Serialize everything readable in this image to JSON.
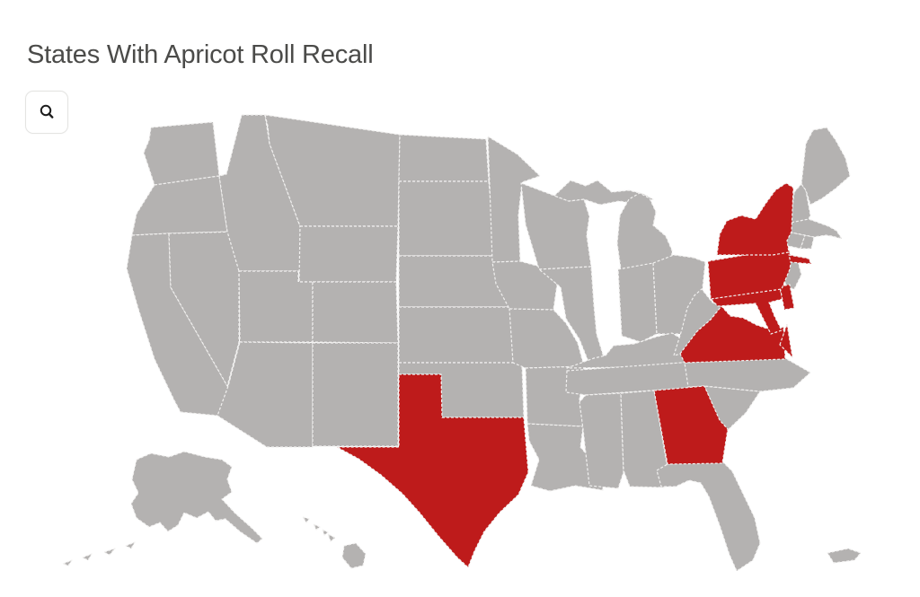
{
  "title": "States With Apricot Roll Recall",
  "toolbar": {
    "zoom_button_icon": "magnifier-icon"
  },
  "map": {
    "type": "us-choropleth",
    "colors": {
      "recalled": "#be1b1b",
      "not_recalled": "#b4b2b1",
      "state_border": "#f1f0ef",
      "background": "#ffffff"
    },
    "legend_note": "",
    "recalled_states": [
      "New York",
      "Pennsylvania",
      "Delaware",
      "Maryland",
      "Virginia",
      "Georgia",
      "Texas"
    ],
    "states": [
      {
        "code": "WA",
        "name": "Washington",
        "recalled": false
      },
      {
        "code": "OR",
        "name": "Oregon",
        "recalled": false
      },
      {
        "code": "CA",
        "name": "California",
        "recalled": false
      },
      {
        "code": "NV",
        "name": "Nevada",
        "recalled": false
      },
      {
        "code": "ID",
        "name": "Idaho",
        "recalled": false
      },
      {
        "code": "MT",
        "name": "Montana",
        "recalled": false
      },
      {
        "code": "WY",
        "name": "Wyoming",
        "recalled": false
      },
      {
        "code": "UT",
        "name": "Utah",
        "recalled": false
      },
      {
        "code": "CO",
        "name": "Colorado",
        "recalled": false
      },
      {
        "code": "AZ",
        "name": "Arizona",
        "recalled": false
      },
      {
        "code": "NM",
        "name": "New Mexico",
        "recalled": false
      },
      {
        "code": "ND",
        "name": "North Dakota",
        "recalled": false
      },
      {
        "code": "SD",
        "name": "South Dakota",
        "recalled": false
      },
      {
        "code": "NE",
        "name": "Nebraska",
        "recalled": false
      },
      {
        "code": "KS",
        "name": "Kansas",
        "recalled": false
      },
      {
        "code": "OK",
        "name": "Oklahoma",
        "recalled": false
      },
      {
        "code": "TX",
        "name": "Texas",
        "recalled": true
      },
      {
        "code": "MN",
        "name": "Minnesota",
        "recalled": false
      },
      {
        "code": "IA",
        "name": "Iowa",
        "recalled": false
      },
      {
        "code": "MO",
        "name": "Missouri",
        "recalled": false
      },
      {
        "code": "AR",
        "name": "Arkansas",
        "recalled": false
      },
      {
        "code": "LA",
        "name": "Louisiana",
        "recalled": false
      },
      {
        "code": "WI",
        "name": "Wisconsin",
        "recalled": false
      },
      {
        "code": "IL",
        "name": "Illinois",
        "recalled": false
      },
      {
        "code": "MI",
        "name": "Michigan",
        "recalled": false
      },
      {
        "code": "IN",
        "name": "Indiana",
        "recalled": false
      },
      {
        "code": "OH",
        "name": "Ohio",
        "recalled": false
      },
      {
        "code": "KY",
        "name": "Kentucky",
        "recalled": false
      },
      {
        "code": "TN",
        "name": "Tennessee",
        "recalled": false
      },
      {
        "code": "MS",
        "name": "Mississippi",
        "recalled": false
      },
      {
        "code": "AL",
        "name": "Alabama",
        "recalled": false
      },
      {
        "code": "GA",
        "name": "Georgia",
        "recalled": true
      },
      {
        "code": "FL",
        "name": "Florida",
        "recalled": false
      },
      {
        "code": "SC",
        "name": "South Carolina",
        "recalled": false
      },
      {
        "code": "NC",
        "name": "North Carolina",
        "recalled": false
      },
      {
        "code": "VA",
        "name": "Virginia",
        "recalled": true
      },
      {
        "code": "WV",
        "name": "West Virginia",
        "recalled": false
      },
      {
        "code": "MD",
        "name": "Maryland",
        "recalled": true
      },
      {
        "code": "DE",
        "name": "Delaware",
        "recalled": true
      },
      {
        "code": "NJ",
        "name": "New Jersey",
        "recalled": false
      },
      {
        "code": "PA",
        "name": "Pennsylvania",
        "recalled": true
      },
      {
        "code": "NY",
        "name": "New York",
        "recalled": true
      },
      {
        "code": "CT",
        "name": "Connecticut",
        "recalled": false
      },
      {
        "code": "RI",
        "name": "Rhode Island",
        "recalled": false
      },
      {
        "code": "MA",
        "name": "Massachusetts",
        "recalled": false
      },
      {
        "code": "VT",
        "name": "Vermont",
        "recalled": false
      },
      {
        "code": "NH",
        "name": "New Hampshire",
        "recalled": false
      },
      {
        "code": "ME",
        "name": "Maine",
        "recalled": false
      },
      {
        "code": "AK",
        "name": "Alaska",
        "recalled": false
      },
      {
        "code": "HI",
        "name": "Hawaii",
        "recalled": false
      },
      {
        "code": "PR",
        "name": "Puerto Rico",
        "recalled": false
      }
    ]
  }
}
